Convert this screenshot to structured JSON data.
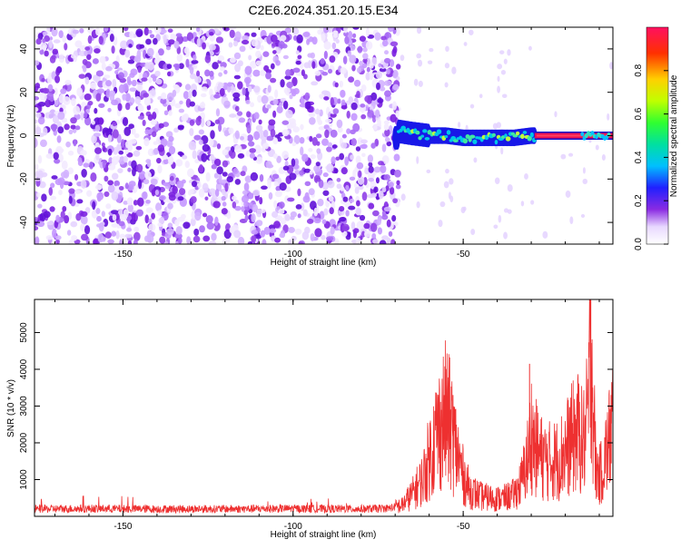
{
  "title": "C2E6.2024.351.20.15.E34",
  "chart_data": [
    {
      "type": "heatmap",
      "xlabel": "Height of straight line (km)",
      "ylabel": "Frequency (Hz)",
      "xlim": [
        -176,
        -6
      ],
      "ylim": [
        -50,
        50
      ],
      "xticks": [
        -150,
        -100,
        -50
      ],
      "xtick_labels": [
        "-150",
        "-100",
        "-50"
      ],
      "yticks": [
        -40,
        -20,
        0,
        20,
        40
      ],
      "ytick_labels": [
        "-40",
        "-20",
        "0",
        "20",
        "40"
      ],
      "colorbar": {
        "label": "Normalized spectral amplitude",
        "range": [
          0,
          1
        ],
        "ticks": [
          0,
          0.2,
          0.4,
          0.6,
          0.8
        ],
        "tick_labels": [
          "0.0",
          "0.2",
          "0.4",
          "0.6",
          "0.8"
        ]
      },
      "features": {
        "noise_region_x": [
          -176,
          -69
        ],
        "signal_band_center_hz": [
          [
            -69,
            2
          ],
          [
            -65,
            1
          ],
          [
            -60,
            0
          ],
          [
            -55,
            0
          ],
          [
            -50,
            -1
          ],
          [
            -45,
            -1
          ],
          [
            -40,
            -1
          ],
          [
            -35,
            -1
          ],
          [
            -30,
            0
          ],
          [
            -25,
            0
          ],
          [
            -20,
            0
          ],
          [
            -15,
            0
          ],
          [
            -10,
            0
          ],
          [
            -6,
            -1
          ]
        ],
        "saturated_segment_x": [
          -29,
          -6
        ]
      },
      "grid": false
    },
    {
      "type": "line",
      "xlabel": "Height of straight line (km)",
      "ylabel": "SNR (10 * v/v)",
      "xlim": [
        -176,
        -6
      ],
      "ylim": [
        0,
        5900
      ],
      "xticks": [
        -150,
        -100,
        -50
      ],
      "xtick_labels": [
        "-150",
        "-100",
        "-50"
      ],
      "yticks": [
        1000,
        2000,
        3000,
        4000,
        5000
      ],
      "ytick_labels": [
        "1000",
        "2000",
        "3000",
        "4000",
        "5000"
      ],
      "color": "#ee3030",
      "series_envelope": [
        [
          -176,
          200
        ],
        [
          -160,
          210
        ],
        [
          -140,
          200
        ],
        [
          -120,
          200
        ],
        [
          -100,
          210
        ],
        [
          -80,
          200
        ],
        [
          -72,
          220
        ],
        [
          -68,
          300
        ],
        [
          -65,
          600
        ],
        [
          -62,
          1000
        ],
        [
          -60,
          1600
        ],
        [
          -58,
          2200
        ],
        [
          -56,
          2600
        ],
        [
          -55,
          2800
        ],
        [
          -54,
          2500
        ],
        [
          -52,
          1800
        ],
        [
          -50,
          1100
        ],
        [
          -48,
          700
        ],
        [
          -45,
          550
        ],
        [
          -42,
          500
        ],
        [
          -40,
          480
        ],
        [
          -38,
          500
        ],
        [
          -35,
          600
        ],
        [
          -33,
          900
        ],
        [
          -31,
          1600
        ],
        [
          -30,
          2300
        ],
        [
          -29,
          1900
        ],
        [
          -27,
          1600
        ],
        [
          -25,
          1500
        ],
        [
          -22,
          1550
        ],
        [
          -20,
          1800
        ],
        [
          -18,
          2100
        ],
        [
          -16,
          2300
        ],
        [
          -15,
          2000
        ],
        [
          -14,
          2200
        ],
        [
          -13,
          3200
        ],
        [
          -12.5,
          5800
        ],
        [
          -12,
          3500
        ],
        [
          -11,
          1300
        ],
        [
          -10,
          1100
        ],
        [
          -9,
          1300
        ],
        [
          -8,
          1700
        ],
        [
          -7,
          2100
        ],
        [
          -6,
          2700
        ]
      ],
      "spikes": [
        [
          -57,
          3300
        ],
        [
          -55,
          3400
        ],
        [
          -53,
          3300
        ],
        [
          -30.5,
          4150
        ],
        [
          -12.5,
          5880
        ],
        [
          -6.5,
          3300
        ]
      ],
      "grid": false
    }
  ]
}
